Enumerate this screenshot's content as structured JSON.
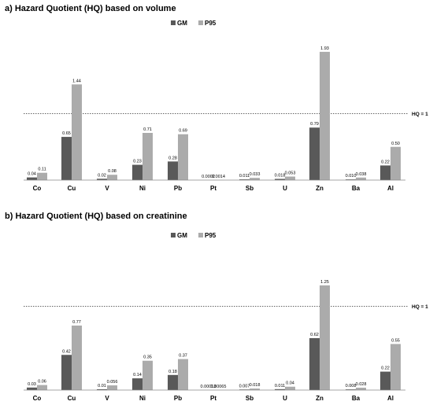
{
  "chart_data": [
    {
      "type": "bar",
      "title": "a) Hazard Quotient (HQ) based on volume",
      "categories": [
        "Co",
        "Cu",
        "V",
        "Ni",
        "Pb",
        "Pt",
        "Sb",
        "U",
        "Zn",
        "Ba",
        "Al"
      ],
      "series": [
        {
          "name": "GM",
          "color": "#595959",
          "values": [
            0.04,
            0.65,
            0.02,
            0.23,
            0.28,
            0.0002,
            0.011,
            0.018,
            0.79,
            0.01,
            0.22
          ],
          "labels": [
            "0.04",
            "0.65",
            "0.02",
            "0.23",
            "0.28",
            "0.0002",
            "0.011",
            "0.018",
            "0.79",
            "0.010",
            "0.22"
          ]
        },
        {
          "name": "P95",
          "color": "#ababab",
          "values": [
            0.11,
            1.44,
            0.08,
            0.71,
            0.69,
            0.0014,
            0.033,
            0.053,
            1.93,
            0.038,
            0.5
          ],
          "labels": [
            "0.11",
            "1.44",
            "0.08",
            "0.71",
            "0.69",
            "0.0014",
            "0.033",
            "0.053",
            "1.93",
            "0.038",
            "0.50"
          ]
        }
      ],
      "reference_line": {
        "value": 1,
        "label": "HQ = 1",
        "style": "dotted"
      },
      "ylim": [
        0,
        2
      ],
      "grid": false,
      "legend": "top-center"
    },
    {
      "type": "bar",
      "title": "b) Hazard Quotient (HQ) based on creatinine",
      "categories": [
        "Co",
        "Cu",
        "V",
        "Ni",
        "Pb",
        "Pt",
        "Sb",
        "U",
        "Zn",
        "Ba",
        "Al"
      ],
      "series": [
        {
          "name": "GM",
          "color": "#595959",
          "values": [
            0.03,
            0.42,
            0.01,
            0.14,
            0.18,
            0.00013,
            0.007,
            0.011,
            0.62,
            0.008,
            0.22
          ],
          "labels": [
            "0.03",
            "0.42",
            "0.01",
            "0.14",
            "0.18",
            "0.00013",
            "0.007",
            "0.011",
            "0.62",
            "0.008",
            "0.22"
          ]
        },
        {
          "name": "P95",
          "color": "#ababab",
          "values": [
            0.06,
            0.77,
            0.056,
            0.35,
            0.37,
            0.00065,
            0.018,
            0.04,
            1.25,
            0.028,
            0.55
          ],
          "labels": [
            "0.06",
            "0.77",
            "0.056",
            "0.35",
            "0.37",
            "0.00065",
            "0.018",
            "0.04",
            "1.25",
            "0.028",
            "0.55"
          ]
        }
      ],
      "reference_line": {
        "value": 1,
        "label": "HQ = 1",
        "style": "dotted"
      },
      "ylim": [
        0,
        1.35
      ],
      "grid": false,
      "legend": "top-center"
    }
  ]
}
